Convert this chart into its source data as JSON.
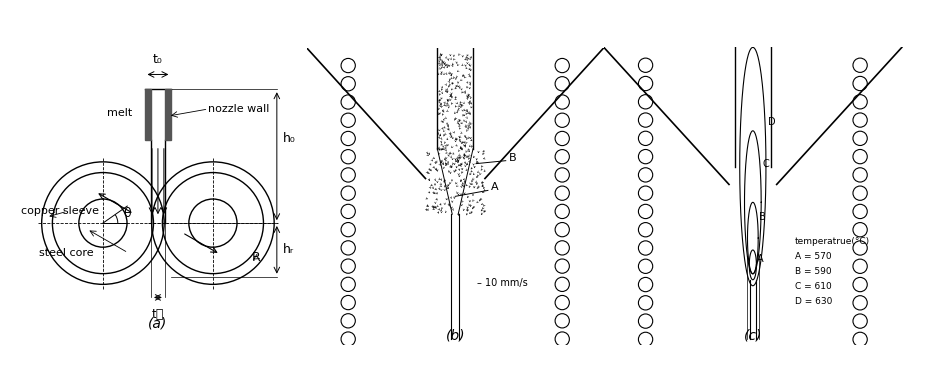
{
  "fig_width": 9.29,
  "fig_height": 3.85,
  "bg_color": "#ffffff",
  "panel_a": {
    "label": "(a)",
    "annotations": {
      "copper_sleeve": "copper sleeve",
      "steel_core": "steel core",
      "melt": "melt",
      "nozzle_wall": "nozzle wall",
      "t0": "t₀",
      "tf": "t⁦",
      "h0": "h₀",
      "hr": "hᵣ",
      "theta": "θ",
      "R": "R"
    }
  },
  "panel_b": {
    "label": "(b)",
    "scale_label": "– 10 mm/s",
    "point_A": "A",
    "point_B": "B"
  },
  "panel_c": {
    "label": "(c)",
    "legend_title": "temperatrue(°C)",
    "legend_items": [
      {
        "label": "A = 570"
      },
      {
        "label": "B = 590"
      },
      {
        "label": "C = 610"
      },
      {
        "label": "D = 630"
      }
    ],
    "points": [
      "A",
      "B",
      "C",
      "D"
    ]
  }
}
